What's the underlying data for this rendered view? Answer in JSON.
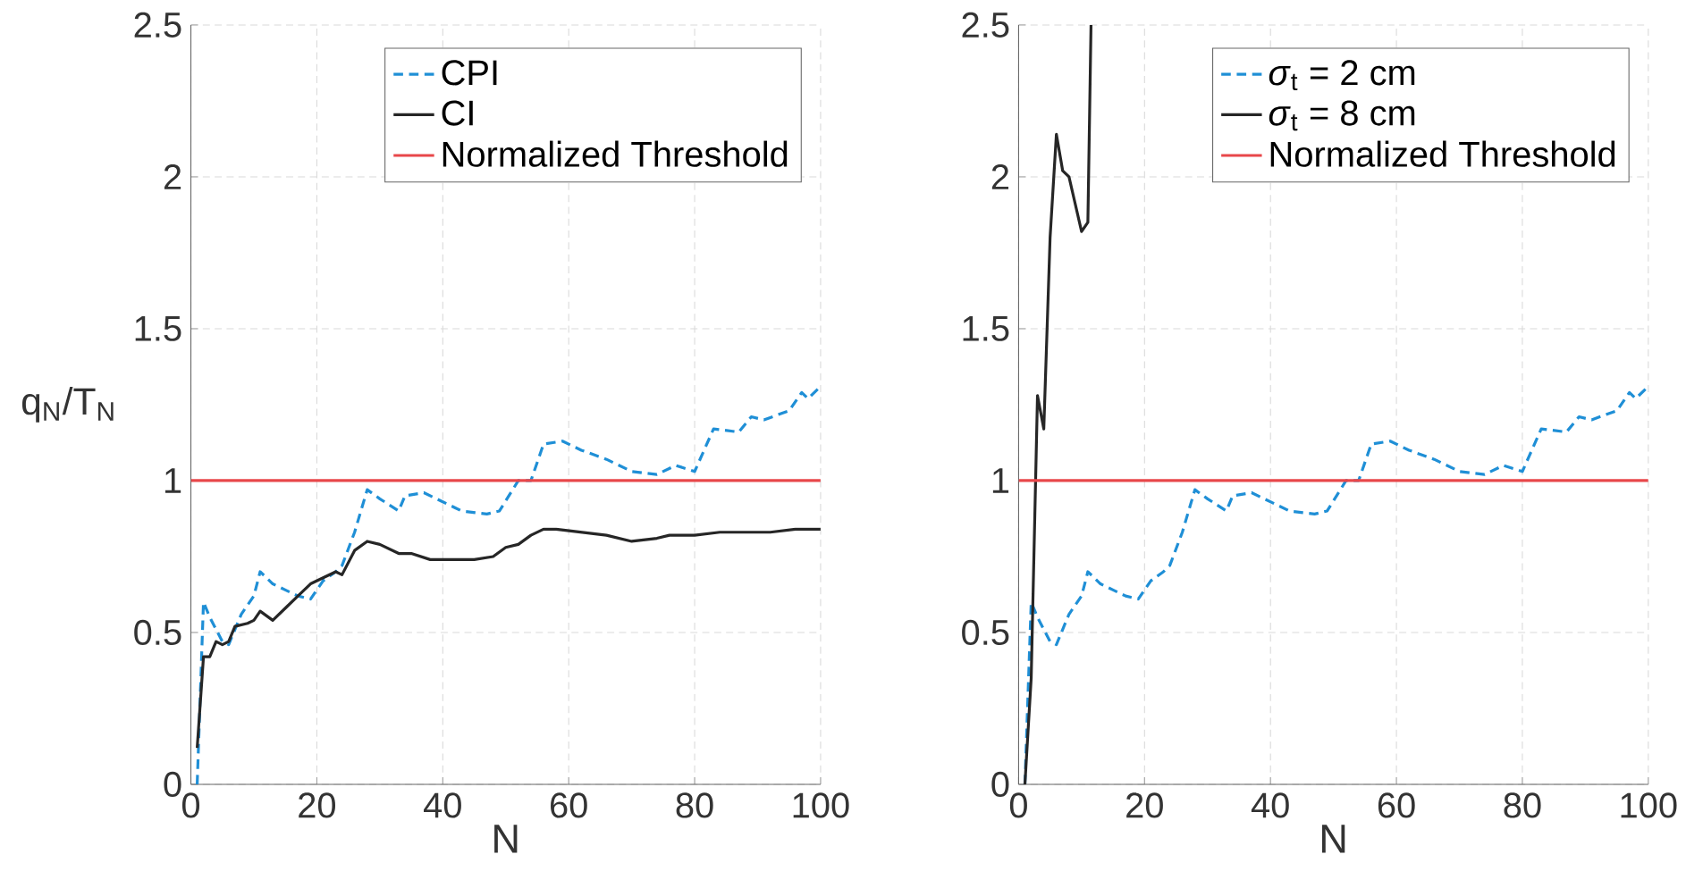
{
  "chart_data": [
    {
      "type": "line",
      "xlabel": "N",
      "ylabel": "q$_{N}$/T$_{N}$",
      "xlim": [
        0,
        100
      ],
      "ylim": [
        0,
        2.5
      ],
      "xticks": [
        0,
        20,
        40,
        60,
        80,
        100
      ],
      "yticks": [
        0,
        0.5,
        1,
        1.5,
        2,
        2.5
      ],
      "grid": true,
      "legend": "top right",
      "marker": "none",
      "series": [
        {
          "name": "CPI",
          "color": "#1f8fd6",
          "line_style": "dashed",
          "x": [
            1,
            2,
            3,
            5,
            6,
            8,
            10,
            11,
            13,
            15,
            17,
            19,
            21,
            23,
            24,
            26,
            28,
            30,
            33,
            34,
            37,
            40,
            43,
            47,
            49,
            52,
            54,
            56,
            59,
            62,
            66,
            70,
            74,
            77,
            80,
            83,
            87,
            89,
            91,
            95,
            97,
            98,
            100
          ],
          "values": [
            0,
            0.6,
            0.55,
            0.47,
            0.46,
            0.56,
            0.62,
            0.7,
            0.66,
            0.64,
            0.62,
            0.61,
            0.67,
            0.7,
            0.72,
            0.83,
            0.97,
            0.94,
            0.9,
            0.95,
            0.96,
            0.93,
            0.9,
            0.89,
            0.9,
            1.0,
            1.0,
            1.12,
            1.13,
            1.1,
            1.07,
            1.03,
            1.02,
            1.05,
            1.03,
            1.17,
            1.16,
            1.21,
            1.2,
            1.23,
            1.29,
            1.27,
            1.31
          ]
        },
        {
          "name": "CI",
          "color": "#262626",
          "line_style": "solid",
          "x": [
            1,
            2,
            3,
            4,
            5,
            6,
            7,
            9,
            10,
            11,
            13,
            15,
            17,
            19,
            21,
            23,
            24,
            26,
            28,
            30,
            33,
            35,
            38,
            42,
            45,
            48,
            50,
            52,
            54,
            56,
            58,
            62,
            66,
            70,
            74,
            76,
            80,
            84,
            88,
            92,
            96,
            98,
            100
          ],
          "values": [
            0.12,
            0.42,
            0.42,
            0.47,
            0.46,
            0.47,
            0.52,
            0.53,
            0.54,
            0.57,
            0.54,
            0.58,
            0.62,
            0.66,
            0.68,
            0.7,
            0.69,
            0.77,
            0.8,
            0.79,
            0.76,
            0.76,
            0.74,
            0.74,
            0.74,
            0.75,
            0.78,
            0.79,
            0.82,
            0.84,
            0.84,
            0.83,
            0.82,
            0.8,
            0.81,
            0.82,
            0.82,
            0.83,
            0.83,
            0.83,
            0.84,
            0.84,
            0.84
          ]
        }
      ],
      "ref_lines": [
        {
          "axis": "y",
          "value": 1,
          "label": "Normalized Threshold",
          "color": "#e8474a",
          "line_style": "solid"
        }
      ]
    },
    {
      "type": "line",
      "xlabel": "N",
      "xlim": [
        0,
        100
      ],
      "ylim": [
        0,
        2.5
      ],
      "xticks": [
        0,
        20,
        40,
        60,
        80,
        100
      ],
      "yticks": [
        0,
        0.5,
        1,
        1.5,
        2,
        2.5
      ],
      "grid": true,
      "legend": "top right",
      "marker": "none",
      "series": [
        {
          "name": "*σ*$_{t}$ = 2 cm",
          "color": "#1f8fd6",
          "line_style": "dashed",
          "x": [
            1,
            2,
            3,
            5,
            6,
            8,
            10,
            11,
            13,
            15,
            17,
            19,
            21,
            23,
            24,
            26,
            28,
            30,
            33,
            34,
            37,
            40,
            43,
            47,
            49,
            52,
            54,
            56,
            59,
            62,
            66,
            70,
            74,
            77,
            80,
            83,
            87,
            89,
            91,
            95,
            97,
            98,
            100
          ],
          "values": [
            0,
            0.6,
            0.55,
            0.47,
            0.46,
            0.56,
            0.62,
            0.7,
            0.66,
            0.64,
            0.62,
            0.61,
            0.67,
            0.7,
            0.72,
            0.83,
            0.97,
            0.94,
            0.9,
            0.95,
            0.96,
            0.93,
            0.9,
            0.89,
            0.9,
            1.0,
            1.0,
            1.12,
            1.13,
            1.1,
            1.07,
            1.03,
            1.02,
            1.05,
            1.03,
            1.17,
            1.16,
            1.21,
            1.2,
            1.23,
            1.29,
            1.27,
            1.31
          ]
        },
        {
          "name": "*σ*$_{t}$ = 8 cm",
          "color": "#262626",
          "line_style": "solid",
          "x": [
            1,
            2,
            3,
            4,
            5,
            6,
            7,
            8,
            10,
            11,
            11.5
          ],
          "values": [
            0,
            0.35,
            1.28,
            1.17,
            1.8,
            2.14,
            2.02,
            2.0,
            1.82,
            1.85,
            2.5
          ]
        }
      ],
      "ref_lines": [
        {
          "axis": "y",
          "value": 1,
          "label": "Normalized Threshold",
          "color": "#e8474a",
          "line_style": "solid"
        }
      ]
    }
  ]
}
